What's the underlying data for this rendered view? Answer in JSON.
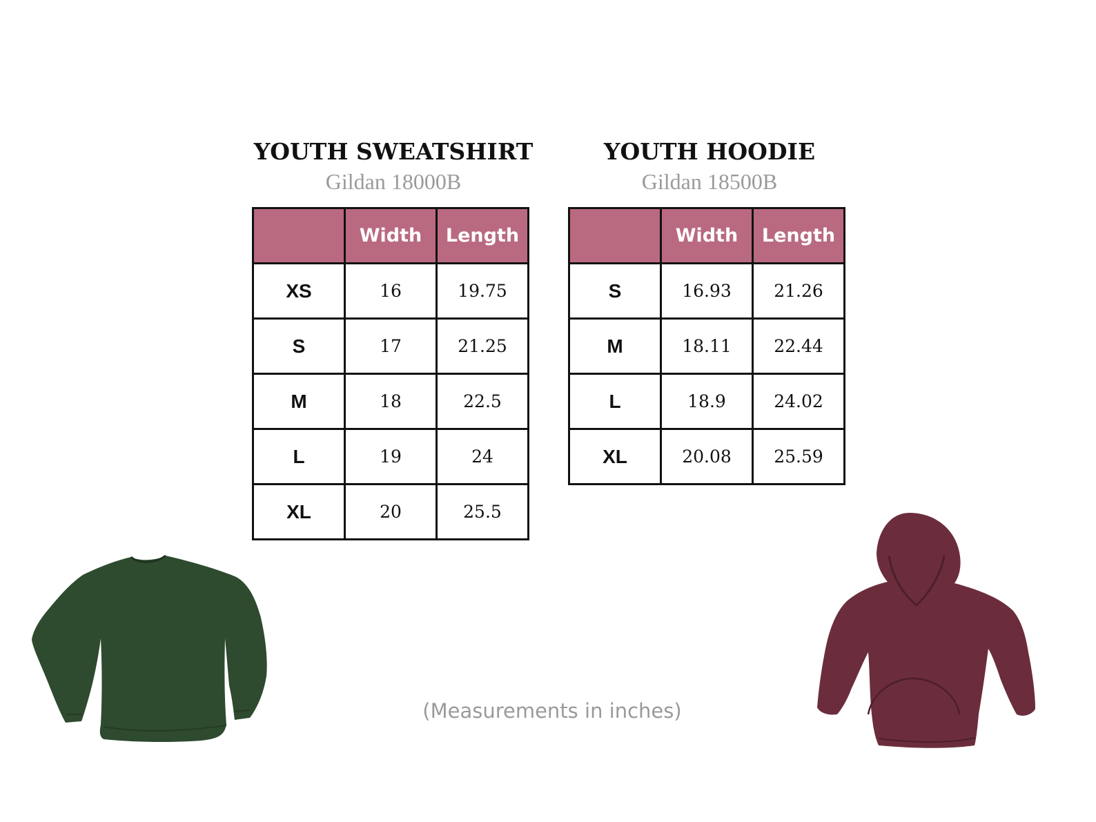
{
  "sweatshirt": {
    "title": "YOUTH SWEATSHIRT",
    "subtitle": "Gildan 18000B",
    "headers": [
      "",
      "Width",
      "Length"
    ],
    "rows": [
      {
        "size": "XS",
        "width": "16",
        "length": "19.75"
      },
      {
        "size": "S",
        "width": "17",
        "length": "21.25"
      },
      {
        "size": "M",
        "width": "18",
        "length": "22.5"
      },
      {
        "size": "L",
        "width": "19",
        "length": "24"
      },
      {
        "size": "XL",
        "width": "20",
        "length": "25.5"
      }
    ],
    "garment_color": "#2e4a2f"
  },
  "hoodie": {
    "title": "YOUTH HOODIE",
    "subtitle": "Gildan 18500B",
    "headers": [
      "",
      "Width",
      "Length"
    ],
    "rows": [
      {
        "size": "S",
        "width": "16.93",
        "length": "21.26"
      },
      {
        "size": "M",
        "width": "18.11",
        "length": "22.44"
      },
      {
        "size": "L",
        "width": "18.9",
        "length": "24.02"
      },
      {
        "size": "XL",
        "width": "20.08",
        "length": "25.59"
      }
    ],
    "garment_color": "#6b2d3c"
  },
  "footnote": "(Measurements in inches)",
  "header_color": "#b96a80",
  "icons": {
    "sweatshirt": "sweatshirt-icon",
    "hoodie": "hoodie-icon"
  }
}
